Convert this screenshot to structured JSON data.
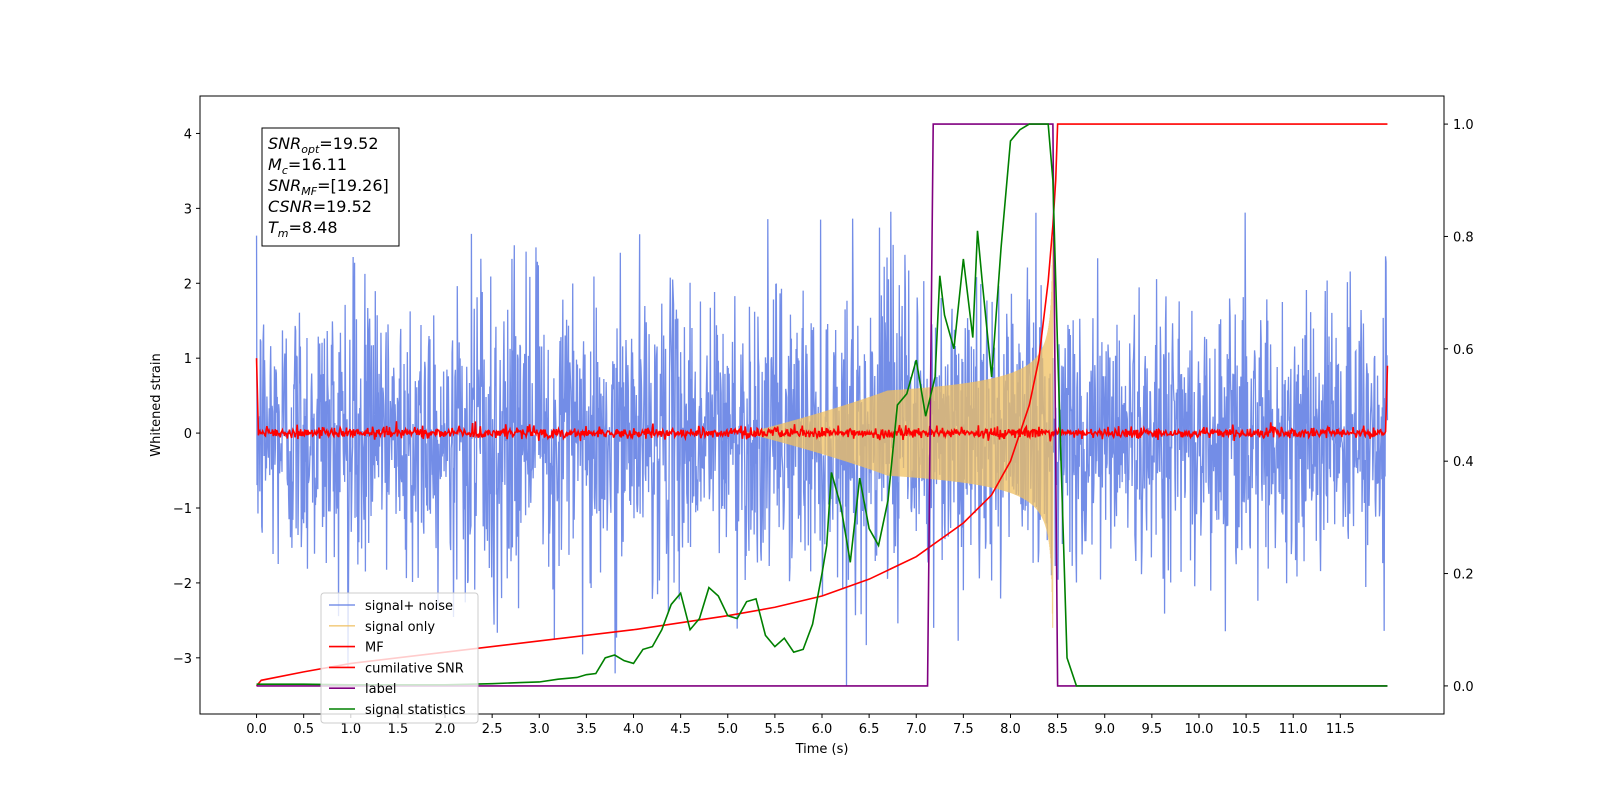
{
  "chart_data": {
    "type": "line",
    "title": "",
    "xlabel": "Time (s)",
    "ylabel": "Whitened strain",
    "xlim": [
      -0.6,
      12.6
    ],
    "ylim": [
      -3.75,
      4.5
    ],
    "y2lim": [
      -0.05,
      1.05
    ],
    "x_ticks": [
      "0.0",
      "0.5",
      "1.0",
      "1.5",
      "2.0",
      "2.5",
      "3.0",
      "3.5",
      "4.0",
      "4.5",
      "5.0",
      "5.5",
      "6.0",
      "6.5",
      "7.0",
      "7.5",
      "8.0",
      "8.5",
      "9.0",
      "9.5",
      "10.0",
      "10.5",
      "11.0",
      "11.5"
    ],
    "y_ticks": [
      "−3",
      "−2",
      "−1",
      "0",
      "1",
      "2",
      "3",
      "4"
    ],
    "y2_ticks": [
      "0.0",
      "0.2",
      "0.4",
      "0.6",
      "0.8",
      "1.0"
    ],
    "grid": false,
    "legend_position": "lower-left",
    "annotation": {
      "lines": [
        {
          "var": "SNR",
          "sub": "opt",
          "value": "=19.52"
        },
        {
          "var": "M",
          "sub": "c",
          "value": "=16.11"
        },
        {
          "var": "SNR",
          "sub": "MF",
          "value": "=[19.26]"
        },
        {
          "var": "CSNR",
          "sub": "",
          "value": "=19.52"
        },
        {
          "var": "T",
          "sub": "m",
          "value": "=8.48"
        }
      ]
    },
    "series": [
      {
        "name": "signal+ noise",
        "color": "#6c87e6",
        "axis": "left",
        "kind": "noise",
        "x_range": [
          0,
          12
        ],
        "envelope": [
          -3.4,
          3.1
        ]
      },
      {
        "name": "signal only",
        "color": "#f0c060",
        "axis": "left",
        "kind": "chirp",
        "peak_x": 8.45,
        "peak_amplitude": 2.6
      },
      {
        "name": "MF",
        "color": "#ff0000",
        "axis": "left",
        "kind": "mf",
        "x_range": [
          0,
          12
        ],
        "base": 0.0,
        "edge_values": [
          1.0,
          0.9
        ]
      },
      {
        "name": "cumilative SNR",
        "color": "#ff0000",
        "axis": "right",
        "x": [
          0,
          0.05,
          0.5,
          1,
          2,
          3,
          4,
          5,
          5.5,
          6,
          6.5,
          7,
          7.5,
          7.8,
          8.0,
          8.2,
          8.3,
          8.4,
          8.45,
          8.48,
          8.5,
          12
        ],
        "y": [
          0,
          0.01,
          0.025,
          0.04,
          0.06,
          0.08,
          0.1,
          0.125,
          0.14,
          0.16,
          0.19,
          0.23,
          0.29,
          0.34,
          0.4,
          0.5,
          0.58,
          0.72,
          0.82,
          0.9,
          1.0,
          1.0
        ]
      },
      {
        "name": "label",
        "color": "#800080",
        "axis": "right",
        "x": [
          0,
          7.12,
          7.18,
          8.45,
          8.5,
          12
        ],
        "y": [
          0,
          0,
          1,
          1,
          0,
          0
        ]
      },
      {
        "name": "signal statistics",
        "color": "#008000",
        "axis": "right",
        "x": [
          0,
          0.5,
          1,
          1.5,
          2,
          2.5,
          2.8,
          3.0,
          3.2,
          3.4,
          3.5,
          3.6,
          3.7,
          3.8,
          3.9,
          4.0,
          4.1,
          4.2,
          4.3,
          4.4,
          4.5,
          4.6,
          4.7,
          4.8,
          4.9,
          5.0,
          5.1,
          5.2,
          5.3,
          5.4,
          5.5,
          5.6,
          5.7,
          5.8,
          5.9,
          6.0,
          6.05,
          6.1,
          6.2,
          6.3,
          6.4,
          6.5,
          6.6,
          6.7,
          6.8,
          6.9,
          7.0,
          7.1,
          7.2,
          7.25,
          7.3,
          7.4,
          7.5,
          7.6,
          7.65,
          7.7,
          7.8,
          7.9,
          8.0,
          8.1,
          8.2,
          8.3,
          8.4,
          8.45,
          8.5,
          8.6,
          8.7,
          12
        ],
        "y": [
          0.003,
          0.003,
          0.002,
          0.002,
          0.002,
          0.004,
          0.006,
          0.007,
          0.012,
          0.015,
          0.02,
          0.022,
          0.05,
          0.055,
          0.045,
          0.04,
          0.065,
          0.07,
          0.1,
          0.145,
          0.165,
          0.1,
          0.12,
          0.175,
          0.16,
          0.125,
          0.12,
          0.15,
          0.155,
          0.09,
          0.07,
          0.085,
          0.06,
          0.065,
          0.11,
          0.2,
          0.25,
          0.38,
          0.32,
          0.22,
          0.37,
          0.28,
          0.25,
          0.33,
          0.5,
          0.52,
          0.58,
          0.48,
          0.55,
          0.73,
          0.66,
          0.6,
          0.76,
          0.62,
          0.81,
          0.72,
          0.55,
          0.78,
          0.97,
          0.99,
          1.0,
          1.0,
          1.0,
          0.9,
          0.6,
          0.05,
          0.0,
          0.0
        ]
      }
    ]
  }
}
